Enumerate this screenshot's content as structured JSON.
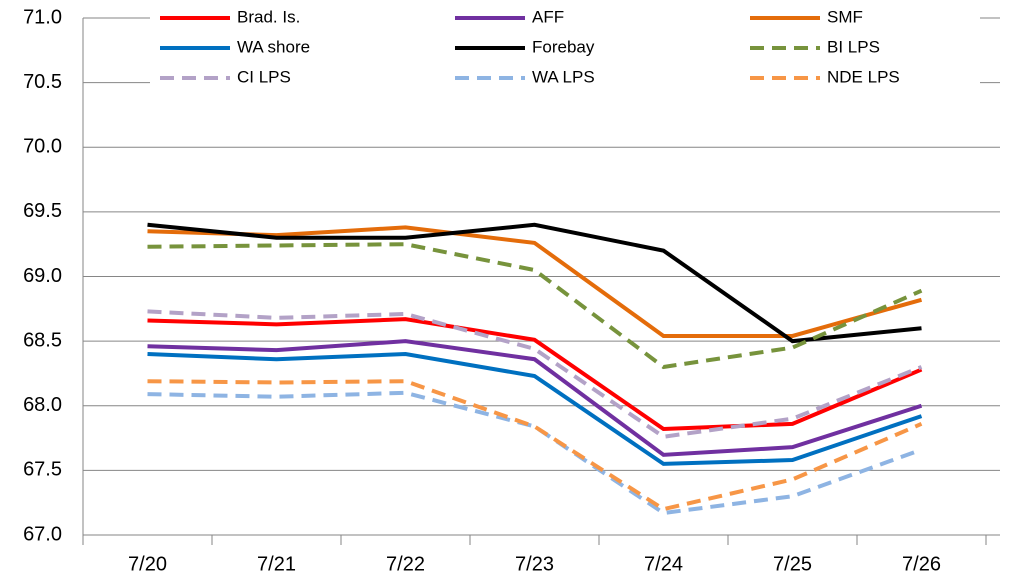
{
  "chart_data": {
    "type": "line",
    "categories": [
      "7/20",
      "7/21",
      "7/22",
      "7/23",
      "7/24",
      "7/25",
      "7/26"
    ],
    "series": [
      {
        "name": "Brad. Is.",
        "color": "#ff0000",
        "style": "solid",
        "values": [
          68.66,
          68.63,
          68.67,
          68.51,
          67.82,
          67.86,
          68.28
        ]
      },
      {
        "name": "AFF",
        "color": "#7030a0",
        "style": "solid",
        "values": [
          68.46,
          68.43,
          68.5,
          68.36,
          67.62,
          67.68,
          68.0
        ]
      },
      {
        "name": "SMF",
        "color": "#e46c0a",
        "style": "solid",
        "values": [
          69.35,
          69.32,
          69.38,
          69.26,
          68.54,
          68.54,
          68.82
        ]
      },
      {
        "name": "WA shore",
        "color": "#0070c0",
        "style": "solid",
        "values": [
          68.4,
          68.36,
          68.4,
          68.23,
          67.55,
          67.58,
          67.92
        ]
      },
      {
        "name": "Forebay",
        "color": "#000000",
        "style": "solid",
        "values": [
          69.4,
          69.3,
          69.3,
          69.4,
          69.2,
          68.5,
          68.6
        ]
      },
      {
        "name": "BI LPS",
        "color": "#77933c",
        "style": "dashed",
        "values": [
          69.23,
          69.24,
          69.25,
          69.05,
          68.3,
          68.45,
          68.89
        ]
      },
      {
        "name": "CI LPS",
        "color": "#b3a2c7",
        "style": "dashed",
        "values": [
          68.73,
          68.68,
          68.71,
          68.44,
          67.76,
          67.9,
          68.3
        ]
      },
      {
        "name": "WA LPS",
        "color": "#8eb4e3",
        "style": "dashed",
        "values": [
          68.09,
          68.07,
          68.1,
          67.84,
          67.17,
          67.3,
          67.66
        ]
      },
      {
        "name": "NDE LPS",
        "color": "#f79646",
        "style": "dashed",
        "values": [
          68.19,
          68.18,
          68.19,
          67.84,
          67.2,
          67.43,
          67.86
        ]
      }
    ],
    "ylim": [
      67,
      71
    ],
    "yticks": [
      {
        "value": 67,
        "label": "67.0"
      },
      {
        "value": 67.5,
        "label": "67.5"
      },
      {
        "value": 68,
        "label": "68.0"
      },
      {
        "value": 68.5,
        "label": "68.5"
      },
      {
        "value": 69,
        "label": "69.0"
      },
      {
        "value": 69.5,
        "label": "69.5"
      },
      {
        "value": 70,
        "label": "70.0"
      },
      {
        "value": 70.5,
        "label": "70.5"
      },
      {
        "value": 71,
        "label": "71.0"
      }
    ],
    "grid": true
  }
}
